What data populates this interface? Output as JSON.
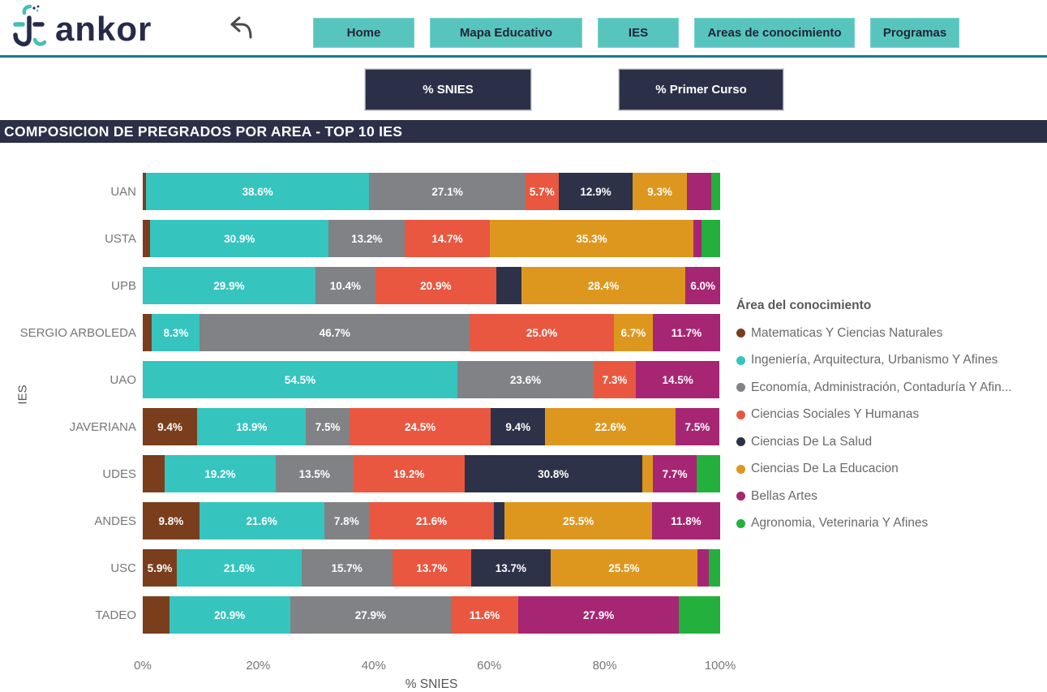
{
  "header": {
    "logo_text": "ankor",
    "nav": [
      {
        "label": "Home"
      },
      {
        "label": "Mapa Educativo"
      },
      {
        "label": "IES"
      },
      {
        "label": "Areas de conocimiento"
      },
      {
        "label": "Programas"
      }
    ]
  },
  "filters": {
    "snies_label": "% SNIES",
    "primer_curso_label": "% Primer Curso"
  },
  "page_title": "COMPOSICION DE PREGRADOS POR AREA - TOP 10 IES",
  "colors": {
    "nav_teal": "#57C5BD",
    "dark_navy": "#2B3048",
    "divider_teal": "#0E7D8C"
  },
  "chart_data": {
    "type": "stacked_bar_horizontal",
    "title": "COMPOSICION DE PREGRADOS POR AREA - TOP 10 IES",
    "xlabel": "% SNIES",
    "ylabel": "IES",
    "xlim": [
      0,
      100
    ],
    "x_ticks": [
      "0%",
      "20%",
      "40%",
      "60%",
      "80%",
      "100%"
    ],
    "legend_title": "Área del conocimiento",
    "legend_position": "right",
    "areas": [
      {
        "name": "Matematicas Y Ciencias Naturales",
        "color": "#7A3E1D"
      },
      {
        "name": "Ingeniería, Arquitectura, Urbanismo Y Afines",
        "color": "#35C4BE"
      },
      {
        "name": "Economía, Administración, Contaduría Y Afin...",
        "color": "#808285"
      },
      {
        "name": "Ciencias Sociales Y Humanas",
        "color": "#E95740"
      },
      {
        "name": "Ciencias De La Salud",
        "color": "#2E3248"
      },
      {
        "name": "Ciencias De La Educacion",
        "color": "#DE971E"
      },
      {
        "name": "Bellas Artes",
        "color": "#A62673"
      },
      {
        "name": "Agronomia, Veterinaria Y Afines",
        "color": "#23B03C"
      }
    ],
    "rows": [
      {
        "category": "UAN",
        "segments": [
          {
            "area": 0,
            "value": 0.6,
            "label": ""
          },
          {
            "area": 1,
            "value": 38.6,
            "label": "38.6%"
          },
          {
            "area": 2,
            "value": 27.1,
            "label": "27.1%"
          },
          {
            "area": 3,
            "value": 5.7,
            "label": "5.7%"
          },
          {
            "area": 4,
            "value": 12.9,
            "label": "12.9%"
          },
          {
            "area": 5,
            "value": 9.3,
            "label": "9.3%"
          },
          {
            "area": 6,
            "value": 4.3,
            "label": ""
          },
          {
            "area": 7,
            "value": 1.5,
            "label": ""
          }
        ]
      },
      {
        "category": "USTA",
        "segments": [
          {
            "area": 0,
            "value": 1.3,
            "label": ""
          },
          {
            "area": 1,
            "value": 30.9,
            "label": "30.9%"
          },
          {
            "area": 2,
            "value": 13.2,
            "label": "13.2%"
          },
          {
            "area": 3,
            "value": 14.7,
            "label": "14.7%"
          },
          {
            "area": 5,
            "value": 35.3,
            "label": "35.3%"
          },
          {
            "area": 6,
            "value": 1.4,
            "label": ""
          },
          {
            "area": 7,
            "value": 3.2,
            "label": ""
          }
        ]
      },
      {
        "category": "UPB",
        "segments": [
          {
            "area": 1,
            "value": 29.9,
            "label": "29.9%"
          },
          {
            "area": 2,
            "value": 10.4,
            "label": "10.4%"
          },
          {
            "area": 3,
            "value": 20.9,
            "label": "20.9%"
          },
          {
            "area": 4,
            "value": 4.4,
            "label": ""
          },
          {
            "area": 5,
            "value": 28.4,
            "label": "28.4%"
          },
          {
            "area": 6,
            "value": 6.0,
            "label": "6.0%"
          }
        ]
      },
      {
        "category": "SERGIO ARBOLEDA",
        "segments": [
          {
            "area": 0,
            "value": 1.6,
            "label": ""
          },
          {
            "area": 1,
            "value": 8.3,
            "label": "8.3%"
          },
          {
            "area": 2,
            "value": 46.7,
            "label": "46.7%"
          },
          {
            "area": 3,
            "value": 25.0,
            "label": "25.0%"
          },
          {
            "area": 5,
            "value": 6.7,
            "label": "6.7%"
          },
          {
            "area": 6,
            "value": 11.7,
            "label": "11.7%"
          }
        ]
      },
      {
        "category": "UAO",
        "segments": [
          {
            "area": 1,
            "value": 54.5,
            "label": "54.5%"
          },
          {
            "area": 2,
            "value": 23.6,
            "label": "23.6%"
          },
          {
            "area": 3,
            "value": 7.3,
            "label": "7.3%"
          },
          {
            "area": 6,
            "value": 14.5,
            "label": "14.5%"
          }
        ]
      },
      {
        "category": "JAVERIANA",
        "segments": [
          {
            "area": 0,
            "value": 9.4,
            "label": "9.4%"
          },
          {
            "area": 1,
            "value": 18.9,
            "label": "18.9%"
          },
          {
            "area": 2,
            "value": 7.5,
            "label": "7.5%"
          },
          {
            "area": 3,
            "value": 24.5,
            "label": "24.5%"
          },
          {
            "area": 4,
            "value": 9.4,
            "label": "9.4%"
          },
          {
            "area": 5,
            "value": 22.6,
            "label": "22.6%"
          },
          {
            "area": 6,
            "value": 7.5,
            "label": "7.5%"
          }
        ]
      },
      {
        "category": "UDES",
        "segments": [
          {
            "area": 0,
            "value": 3.8,
            "label": ""
          },
          {
            "area": 1,
            "value": 19.2,
            "label": "19.2%"
          },
          {
            "area": 2,
            "value": 13.5,
            "label": "13.5%"
          },
          {
            "area": 3,
            "value": 19.2,
            "label": "19.2%"
          },
          {
            "area": 4,
            "value": 30.8,
            "label": "30.8%"
          },
          {
            "area": 5,
            "value": 1.8,
            "label": ""
          },
          {
            "area": 6,
            "value": 7.7,
            "label": "7.7%"
          },
          {
            "area": 7,
            "value": 4.0,
            "label": ""
          }
        ]
      },
      {
        "category": "ANDES",
        "segments": [
          {
            "area": 0,
            "value": 9.8,
            "label": "9.8%"
          },
          {
            "area": 1,
            "value": 21.6,
            "label": "21.6%"
          },
          {
            "area": 2,
            "value": 7.8,
            "label": "7.8%"
          },
          {
            "area": 3,
            "value": 21.6,
            "label": "21.6%"
          },
          {
            "area": 4,
            "value": 1.9,
            "label": ""
          },
          {
            "area": 5,
            "value": 25.5,
            "label": "25.5%"
          },
          {
            "area": 6,
            "value": 11.8,
            "label": "11.8%"
          }
        ]
      },
      {
        "category": "USC",
        "segments": [
          {
            "area": 0,
            "value": 5.9,
            "label": "5.9%"
          },
          {
            "area": 1,
            "value": 21.6,
            "label": "21.6%"
          },
          {
            "area": 2,
            "value": 15.7,
            "label": "15.7%"
          },
          {
            "area": 3,
            "value": 13.7,
            "label": "13.7%"
          },
          {
            "area": 4,
            "value": 13.7,
            "label": "13.7%"
          },
          {
            "area": 5,
            "value": 25.5,
            "label": "25.5%"
          },
          {
            "area": 6,
            "value": 1.9,
            "label": ""
          },
          {
            "area": 7,
            "value": 2.0,
            "label": ""
          }
        ]
      },
      {
        "category": "TADEO",
        "segments": [
          {
            "area": 0,
            "value": 4.6,
            "label": ""
          },
          {
            "area": 1,
            "value": 20.9,
            "label": "20.9%"
          },
          {
            "area": 2,
            "value": 27.9,
            "label": "27.9%"
          },
          {
            "area": 3,
            "value": 11.6,
            "label": "11.6%"
          },
          {
            "area": 6,
            "value": 27.9,
            "label": "27.9%"
          },
          {
            "area": 7,
            "value": 7.1,
            "label": ""
          }
        ]
      }
    ]
  }
}
